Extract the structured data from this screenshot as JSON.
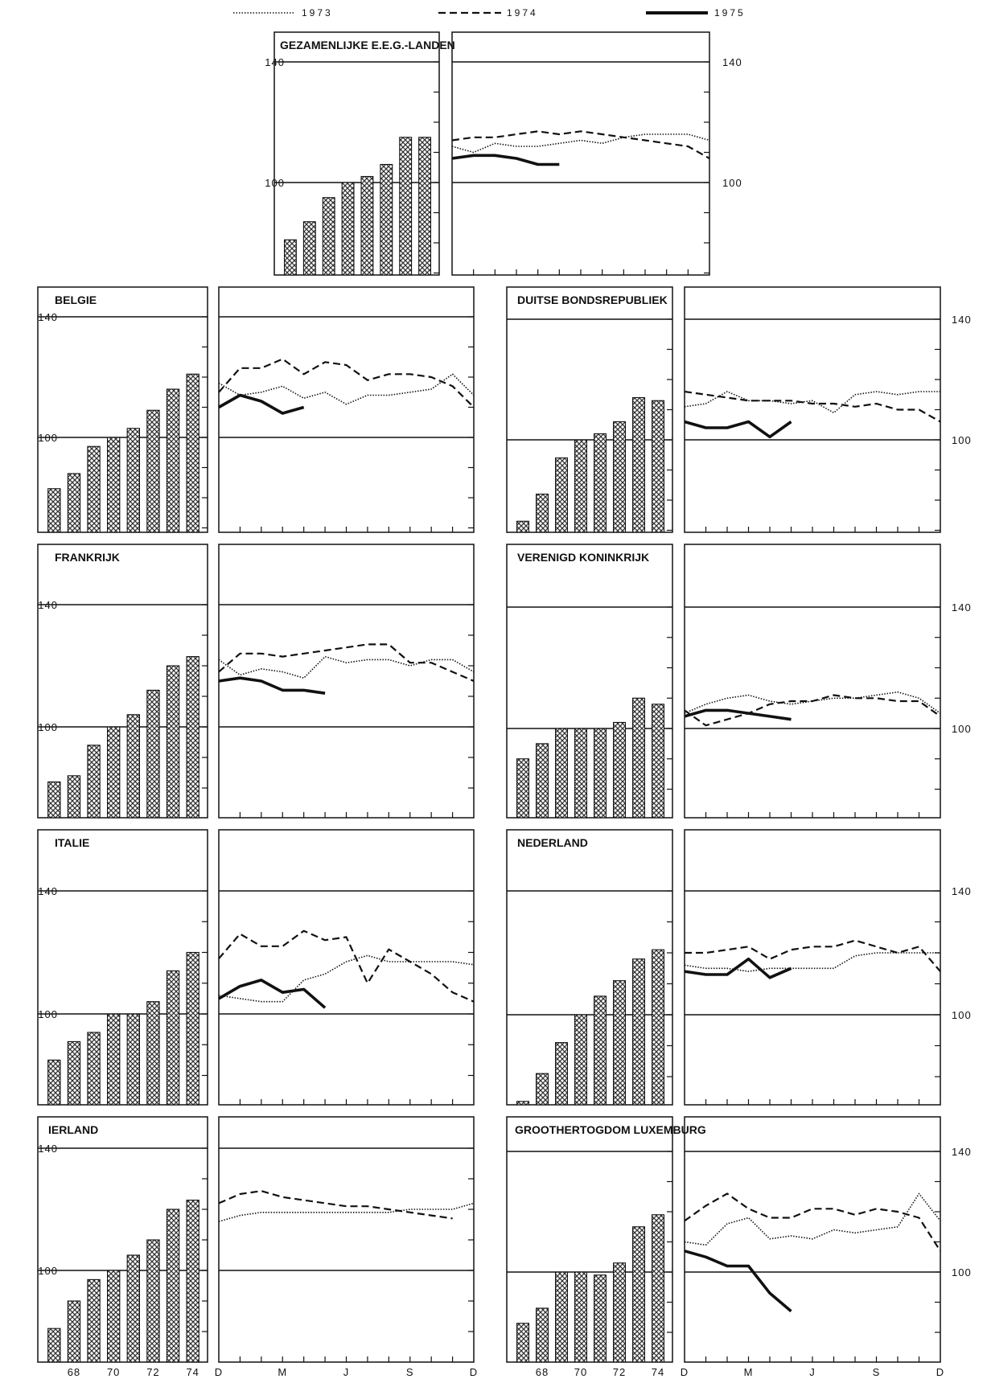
{
  "legend": [
    {
      "label": "1973",
      "style": "dotted"
    },
    {
      "label": "1974",
      "style": "dashed"
    },
    {
      "label": "1975",
      "style": "solid"
    }
  ],
  "colors": {
    "ink": "#111111",
    "bar_fill": "#333333",
    "background": "#ffffff"
  },
  "icons": {
    "bar_fill": "crosshatch-pattern"
  },
  "chart_data": [
    {
      "type": "bar+line",
      "title": "GEZAMENLIJKE E.E.G.-LANDEN",
      "y_ticks": [
        "140",
        "100"
      ],
      "ylim": [
        70,
        148
      ],
      "bars": {
        "categories": [
          "67",
          "68",
          "69",
          "70",
          "71",
          "72",
          "73",
          "74"
        ],
        "x_tick_labels": [
          "68",
          "70",
          "72",
          "74"
        ],
        "values": [
          81,
          87,
          95,
          100,
          102,
          106,
          115,
          115
        ]
      },
      "lines": {
        "x_tick_labels": [
          "D",
          "M",
          "J",
          "S",
          "D"
        ],
        "series": [
          {
            "name": "1973",
            "values": [
              112,
              110,
              113,
              112,
              112,
              113,
              114,
              113,
              115,
              116,
              116,
              116,
              114
            ]
          },
          {
            "name": "1974",
            "values": [
              114,
              115,
              115,
              116,
              117,
              116,
              117,
              116,
              115,
              114,
              113,
              112,
              108
            ]
          },
          {
            "name": "1975",
            "values": [
              108,
              109,
              109,
              108,
              106,
              106
            ]
          }
        ]
      }
    },
    {
      "type": "bar+line",
      "title": "BELGIE",
      "y_ticks": [
        "140",
        "100"
      ],
      "ylim": [
        70,
        148
      ],
      "bars": {
        "categories": [
          "67",
          "68",
          "69",
          "70",
          "71",
          "72",
          "73",
          "74"
        ],
        "x_tick_labels": [
          "68",
          "70",
          "72",
          "74"
        ],
        "values": [
          83,
          88,
          97,
          100,
          103,
          109,
          116,
          121
        ]
      },
      "lines": {
        "x_tick_labels": [
          "D",
          "M",
          "J",
          "S",
          "D"
        ],
        "series": [
          {
            "name": "1973",
            "values": [
              118,
              114,
              115,
              117,
              113,
              115,
              111,
              114,
              114,
              115,
              116,
              121,
              114
            ]
          },
          {
            "name": "1974",
            "values": [
              115,
              123,
              123,
              126,
              121,
              125,
              124,
              119,
              121,
              121,
              120,
              117,
              110
            ]
          },
          {
            "name": "1975",
            "values": [
              110,
              114,
              112,
              108,
              110
            ]
          }
        ]
      }
    },
    {
      "type": "bar+line",
      "title": "DUITSE BONDSREPUBLIEK",
      "y_ticks": [
        "140",
        "100"
      ],
      "ylim": [
        70,
        148
      ],
      "bars": {
        "categories": [
          "67",
          "68",
          "69",
          "70",
          "71",
          "72",
          "73",
          "74"
        ],
        "x_tick_labels": [
          "68",
          "70",
          "72",
          "74"
        ],
        "values": [
          73,
          82,
          94,
          100,
          102,
          106,
          114,
          113
        ]
      },
      "lines": {
        "x_tick_labels": [
          "D",
          "M",
          "J",
          "S",
          "D"
        ],
        "series": [
          {
            "name": "1973",
            "values": [
              111,
              112,
              116,
              113,
              113,
              112,
              113,
              109,
              115,
              116,
              115,
              116,
              116
            ]
          },
          {
            "name": "1974",
            "values": [
              116,
              115,
              114,
              113,
              113,
              113,
              112,
              112,
              111,
              112,
              110,
              110,
              106
            ]
          },
          {
            "name": "1975",
            "values": [
              106,
              104,
              104,
              106,
              101,
              106
            ]
          }
        ]
      }
    },
    {
      "type": "bar+line",
      "title": "FRANKRIJK",
      "y_ticks": [
        "140",
        "100"
      ],
      "ylim": [
        70,
        148
      ],
      "bars": {
        "categories": [
          "67",
          "68",
          "69",
          "70",
          "71",
          "72",
          "73",
          "74"
        ],
        "x_tick_labels": [
          "68",
          "70",
          "72",
          "74"
        ],
        "values": [
          82,
          84,
          94,
          100,
          104,
          112,
          120,
          123
        ]
      },
      "lines": {
        "x_tick_labels": [
          "D",
          "M",
          "J",
          "S",
          "D"
        ],
        "series": [
          {
            "name": "1973",
            "values": [
              122,
              117,
              119,
              118,
              116,
              123,
              121,
              122,
              122,
              120,
              122,
              122,
              118
            ]
          },
          {
            "name": "1974",
            "values": [
              118,
              124,
              124,
              123,
              124,
              125,
              126,
              127,
              127,
              121,
              121,
              118,
              115
            ]
          },
          {
            "name": "1975",
            "values": [
              115,
              116,
              115,
              112,
              112,
              111
            ]
          }
        ]
      }
    },
    {
      "type": "bar+line",
      "title": "VERENIGD KONINKRIJK",
      "y_ticks": [
        "140",
        "100"
      ],
      "ylim": [
        70,
        148
      ],
      "bars": {
        "categories": [
          "67",
          "68",
          "69",
          "70",
          "71",
          "72",
          "73",
          "74"
        ],
        "x_tick_labels": [
          "68",
          "70",
          "72",
          "74"
        ],
        "values": [
          90,
          95,
          100,
          100,
          100,
          102,
          110,
          108
        ]
      },
      "lines": {
        "x_tick_labels": [
          "D",
          "M",
          "J",
          "S",
          "D"
        ],
        "series": [
          {
            "name": "1973",
            "values": [
              105,
              108,
              110,
              111,
              109,
              108,
              109,
              110,
              110,
              111,
              112,
              110,
              105
            ]
          },
          {
            "name": "1974",
            "values": [
              106,
              101,
              103,
              105,
              108,
              109,
              109,
              111,
              110,
              110,
              109,
              109,
              104
            ]
          },
          {
            "name": "1975",
            "values": [
              104,
              106,
              106,
              105,
              104,
              103
            ]
          }
        ]
      }
    },
    {
      "type": "bar+line",
      "title": "ITALIE",
      "y_ticks": [
        "140",
        "100"
      ],
      "ylim": [
        70,
        148
      ],
      "bars": {
        "categories": [
          "67",
          "68",
          "69",
          "70",
          "71",
          "72",
          "73",
          "74"
        ],
        "x_tick_labels": [
          "68",
          "70",
          "72",
          "74"
        ],
        "values": [
          85,
          91,
          94,
          100,
          100,
          104,
          114,
          120
        ]
      },
      "lines": {
        "x_tick_labels": [
          "D",
          "M",
          "J",
          "S",
          "D"
        ],
        "series": [
          {
            "name": "1973",
            "values": [
              106,
              105,
              104,
              104,
              111,
              113,
              117,
              119,
              117,
              117,
              117,
              117,
              116
            ]
          },
          {
            "name": "1974",
            "values": [
              118,
              126,
              122,
              122,
              127,
              124,
              125,
              110,
              121,
              117,
              113,
              107,
              104
            ]
          },
          {
            "name": "1975",
            "values": [
              105,
              109,
              111,
              107,
              108,
              102
            ]
          }
        ]
      }
    },
    {
      "type": "bar+line",
      "title": "NEDERLAND",
      "y_ticks": [
        "140",
        "100"
      ],
      "ylim": [
        70,
        148
      ],
      "bars": {
        "categories": [
          "67",
          "68",
          "69",
          "70",
          "71",
          "72",
          "73",
          "74"
        ],
        "x_tick_labels": [
          "68",
          "70",
          "72",
          "74"
        ],
        "values": [
          72,
          81,
          91,
          100,
          106,
          111,
          118,
          121
        ]
      },
      "lines": {
        "x_tick_labels": [
          "D",
          "M",
          "J",
          "S",
          "D"
        ],
        "series": [
          {
            "name": "1973",
            "values": [
              116,
              115,
              115,
              114,
              115,
              115,
              115,
              115,
              119,
              120,
              120,
              120,
              120
            ]
          },
          {
            "name": "1974",
            "values": [
              120,
              120,
              121,
              122,
              118,
              121,
              122,
              122,
              124,
              122,
              120,
              122,
              114
            ]
          },
          {
            "name": "1975",
            "values": [
              114,
              113,
              113,
              118,
              112,
              115
            ]
          }
        ]
      }
    },
    {
      "type": "bar+line",
      "title": "IERLAND",
      "y_ticks": [
        "140",
        "100"
      ],
      "ylim": [
        70,
        148
      ],
      "bars": {
        "categories": [
          "67",
          "68",
          "69",
          "70",
          "71",
          "72",
          "73",
          "74"
        ],
        "x_tick_labels": [
          "68",
          "70",
          "72",
          "74"
        ],
        "values": [
          81,
          90,
          97,
          100,
          105,
          110,
          120,
          123
        ]
      },
      "lines": {
        "x_tick_labels": [
          "D",
          "M",
          "J",
          "S",
          "D"
        ],
        "series": [
          {
            "name": "1973",
            "values": [
              116,
              118,
              119,
              119,
              119,
              119,
              119,
              119,
              119,
              120,
              120,
              120,
              122
            ]
          },
          {
            "name": "1974",
            "values": [
              122,
              125,
              126,
              124,
              123,
              122,
              121,
              121,
              120,
              119,
              118,
              117
            ]
          }
        ]
      }
    },
    {
      "type": "bar+line",
      "title": "GROOTHERTOGDOM LUXEMBURG",
      "y_ticks": [
        "140",
        "100"
      ],
      "ylim": [
        70,
        148
      ],
      "bars": {
        "categories": [
          "67",
          "68",
          "69",
          "70",
          "71",
          "72",
          "73",
          "74"
        ],
        "x_tick_labels": [
          "68",
          "70",
          "72",
          "74"
        ],
        "values": [
          83,
          88,
          100,
          100,
          99,
          103,
          115,
          119
        ]
      },
      "lines": {
        "x_tick_labels": [
          "D",
          "M",
          "J",
          "S",
          "D"
        ],
        "series": [
          {
            "name": "1973",
            "values": [
              110,
              109,
              116,
              118,
              111,
              112,
              111,
              114,
              113,
              114,
              115,
              126,
              117
            ]
          },
          {
            "name": "1974",
            "values": [
              117,
              122,
              126,
              121,
              118,
              118,
              121,
              121,
              119,
              121,
              120,
              118,
              107
            ]
          },
          {
            "name": "1975",
            "values": [
              107,
              105,
              102,
              102,
              93,
              87
            ]
          }
        ]
      }
    }
  ]
}
